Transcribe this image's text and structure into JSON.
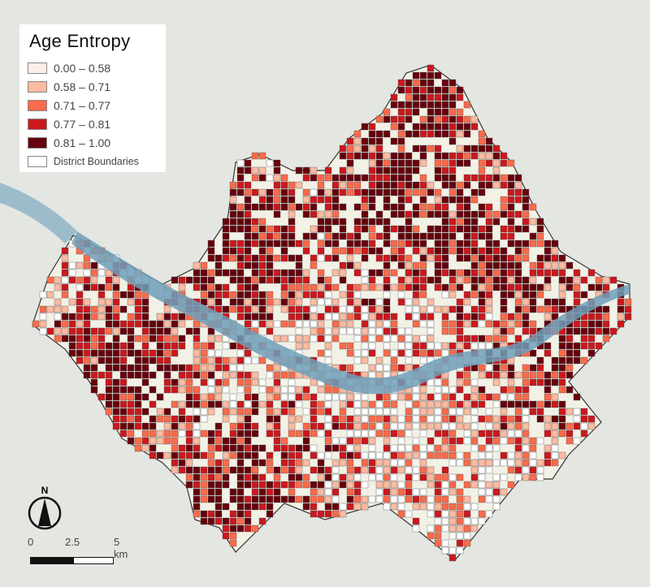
{
  "legend": {
    "title": "Age Entropy",
    "classes": [
      {
        "label": "0.00 – 0.58",
        "color": "#fdeee8"
      },
      {
        "label": "0.58 – 0.71",
        "color": "#fcbba1"
      },
      {
        "label": "0.71 – 0.77",
        "color": "#fb6a4a"
      },
      {
        "label": "0.77 – 0.81",
        "color": "#cb181d"
      },
      {
        "label": "0.81 – 1.00",
        "color": "#67000d"
      }
    ],
    "boundaries_label": "District Boundaries"
  },
  "north_arrow": {
    "label": "N"
  },
  "scale_bar": {
    "labels": [
      "0",
      "2.5",
      "5 km"
    ]
  },
  "colors": {
    "background": "#e4e6e1",
    "river": "#6e9fb8",
    "green": "#c9d8b0",
    "district_fill": "#f2f1e6"
  }
}
